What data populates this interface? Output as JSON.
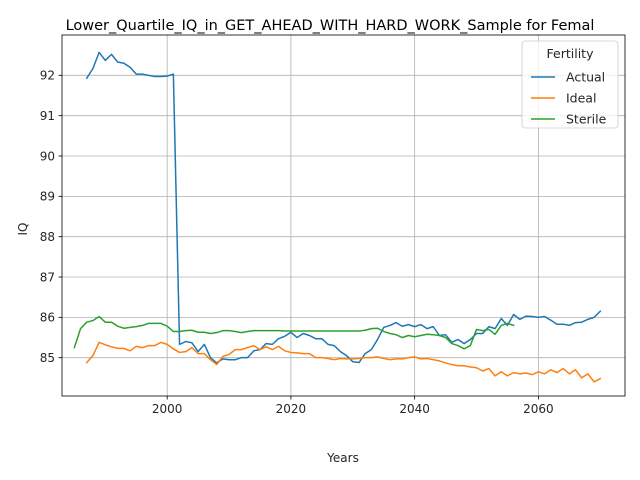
{
  "chart_data": {
    "type": "line",
    "title": "Lower_Quartile_IQ_in_GET_AHEAD_WITH_HARD_WORK_Sample for Femal",
    "xlabel": "Years",
    "ylabel": "IQ",
    "xlim": [
      1983,
      2074
    ],
    "ylim": [
      84.05,
      93.0
    ],
    "x_ticks": [
      2000,
      2020,
      2040,
      2060
    ],
    "y_ticks": [
      85,
      86,
      87,
      88,
      89,
      90,
      91,
      92
    ],
    "grid": true,
    "legend": {
      "title": "Fertility",
      "placement": "top-right"
    },
    "series": [
      {
        "name": "Actual",
        "color": "#1f77b4",
        "x": [
          1987,
          1988,
          1989,
          1990,
          1991,
          1992,
          1993,
          1994,
          1995,
          1996,
          1997,
          1998,
          1999,
          2000,
          2001,
          2002,
          2003,
          2004,
          2005,
          2006,
          2007,
          2008,
          2009,
          2010,
          2011,
          2012,
          2013,
          2014,
          2015,
          2016,
          2017,
          2018,
          2019,
          2020,
          2021,
          2022,
          2023,
          2024,
          2025,
          2026,
          2027,
          2028,
          2029,
          2030,
          2031,
          2032,
          2033,
          2034,
          2035,
          2036,
          2037,
          2038,
          2039,
          2040,
          2041,
          2042,
          2043,
          2044,
          2045,
          2046,
          2047,
          2048,
          2049,
          2050,
          2051,
          2052,
          2053,
          2054,
          2055,
          2056,
          2057,
          2058,
          2059,
          2060,
          2061,
          2062,
          2063,
          2064,
          2065,
          2066,
          2067,
          2068,
          2069,
          2070
        ],
        "values": [
          91.93,
          92.17,
          92.57,
          92.37,
          92.52,
          92.33,
          92.3,
          92.2,
          92.03,
          92.03,
          92.0,
          91.97,
          91.97,
          91.98,
          92.03,
          85.33,
          85.4,
          85.37,
          85.15,
          85.33,
          85.0,
          84.87,
          84.97,
          84.95,
          84.95,
          85.0,
          85.0,
          85.17,
          85.2,
          85.35,
          85.33,
          85.47,
          85.53,
          85.63,
          85.5,
          85.6,
          85.55,
          85.47,
          85.47,
          85.33,
          85.3,
          85.15,
          85.05,
          84.9,
          84.88,
          85.1,
          85.2,
          85.45,
          85.75,
          85.8,
          85.87,
          85.78,
          85.82,
          85.77,
          85.82,
          85.72,
          85.77,
          85.55,
          85.57,
          85.38,
          85.45,
          85.35,
          85.45,
          85.6,
          85.6,
          85.77,
          85.72,
          85.97,
          85.8,
          86.07,
          85.95,
          86.03,
          86.02,
          86.0,
          86.02,
          85.93,
          85.83,
          85.83,
          85.8,
          85.87,
          85.88,
          85.95,
          86.0,
          86.15
        ]
      },
      {
        "name": "Ideal",
        "color": "#ff7f0e",
        "x": [
          1987,
          1988,
          1989,
          1990,
          1991,
          1992,
          1993,
          1994,
          1995,
          1996,
          1997,
          1998,
          1999,
          2000,
          2001,
          2002,
          2003,
          2004,
          2005,
          2006,
          2007,
          2008,
          2009,
          2010,
          2011,
          2012,
          2013,
          2014,
          2015,
          2016,
          2017,
          2018,
          2019,
          2020,
          2021,
          2022,
          2023,
          2024,
          2025,
          2026,
          2027,
          2028,
          2029,
          2030,
          2031,
          2032,
          2033,
          2034,
          2035,
          2036,
          2037,
          2038,
          2039,
          2040,
          2041,
          2042,
          2043,
          2044,
          2045,
          2046,
          2047,
          2048,
          2049,
          2050,
          2051,
          2052,
          2053,
          2054,
          2055,
          2056,
          2057,
          2058,
          2059,
          2060,
          2061,
          2062,
          2063,
          2064,
          2065,
          2066,
          2067,
          2068,
          2069,
          2070
        ],
        "values": [
          84.88,
          85.05,
          85.38,
          85.32,
          85.27,
          85.23,
          85.23,
          85.17,
          85.28,
          85.25,
          85.3,
          85.3,
          85.38,
          85.33,
          85.22,
          85.13,
          85.15,
          85.25,
          85.1,
          85.1,
          84.95,
          84.83,
          85.03,
          85.08,
          85.2,
          85.2,
          85.25,
          85.3,
          85.2,
          85.27,
          85.2,
          85.28,
          85.17,
          85.13,
          85.12,
          85.1,
          85.1,
          85.0,
          85.0,
          84.98,
          84.95,
          84.98,
          84.97,
          84.97,
          84.98,
          85.0,
          85.0,
          85.02,
          84.98,
          84.95,
          84.97,
          84.97,
          85.0,
          85.02,
          84.97,
          84.98,
          84.95,
          84.92,
          84.87,
          84.83,
          84.8,
          84.8,
          84.77,
          84.75,
          84.67,
          84.73,
          84.55,
          84.65,
          84.55,
          84.63,
          84.6,
          84.62,
          84.58,
          84.65,
          84.6,
          84.7,
          84.63,
          84.73,
          84.6,
          84.7,
          84.5,
          84.6,
          84.4,
          84.48
        ]
      },
      {
        "name": "Sterile",
        "color": "#2ca02c",
        "x": [
          1985,
          1986,
          1987,
          1988,
          1989,
          1990,
          1991,
          1992,
          1993,
          1994,
          1995,
          1996,
          1997,
          1998,
          1999,
          2000,
          2001,
          2002,
          2003,
          2004,
          2005,
          2006,
          2007,
          2008,
          2009,
          2010,
          2011,
          2012,
          2013,
          2014,
          2015,
          2016,
          2017,
          2018,
          2019,
          2020,
          2021,
          2022,
          2023,
          2024,
          2025,
          2026,
          2027,
          2028,
          2029,
          2030,
          2031,
          2032,
          2033,
          2034,
          2035,
          2036,
          2037,
          2038,
          2039,
          2040,
          2041,
          2042,
          2043,
          2044,
          2045,
          2046,
          2047,
          2048,
          2049,
          2050,
          2051,
          2052,
          2053,
          2054,
          2055,
          2056
        ],
        "values": [
          85.25,
          85.72,
          85.88,
          85.92,
          86.02,
          85.88,
          85.88,
          85.78,
          85.73,
          85.75,
          85.77,
          85.8,
          85.85,
          85.85,
          85.85,
          85.78,
          85.65,
          85.65,
          85.67,
          85.68,
          85.63,
          85.63,
          85.6,
          85.62,
          85.67,
          85.67,
          85.65,
          85.62,
          85.65,
          85.67,
          85.67,
          85.67,
          85.67,
          85.67,
          85.66,
          85.66,
          85.66,
          85.66,
          85.66,
          85.66,
          85.66,
          85.66,
          85.66,
          85.66,
          85.66,
          85.66,
          85.66,
          85.68,
          85.72,
          85.73,
          85.65,
          85.6,
          85.57,
          85.5,
          85.55,
          85.52,
          85.55,
          85.58,
          85.57,
          85.55,
          85.5,
          85.35,
          85.3,
          85.22,
          85.3,
          85.7,
          85.67,
          85.7,
          85.58,
          85.8,
          85.85,
          85.8
        ]
      }
    ]
  }
}
